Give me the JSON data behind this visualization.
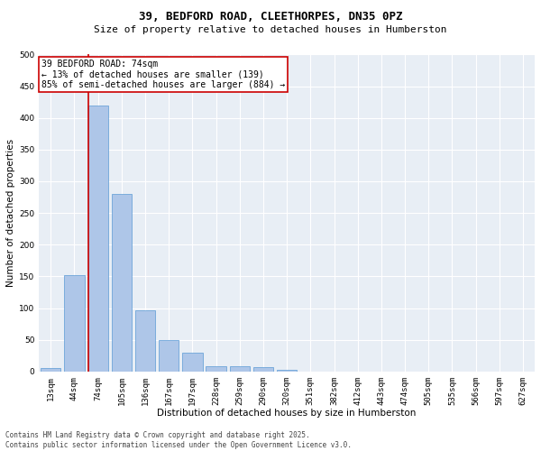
{
  "title_line1": "39, BEDFORD ROAD, CLEETHORPES, DN35 0PZ",
  "title_line2": "Size of property relative to detached houses in Humberston",
  "xlabel": "Distribution of detached houses by size in Humberston",
  "ylabel": "Number of detached properties",
  "bar_values": [
    5,
    152,
    420,
    280,
    96,
    50,
    29,
    8,
    8,
    7,
    3,
    0,
    0,
    0,
    0,
    0,
    0,
    0,
    0,
    0,
    0
  ],
  "bar_labels": [
    "13sqm",
    "44sqm",
    "74sqm",
    "105sqm",
    "136sqm",
    "167sqm",
    "197sqm",
    "228sqm",
    "259sqm",
    "290sqm",
    "320sqm",
    "351sqm",
    "382sqm",
    "412sqm",
    "443sqm",
    "474sqm",
    "505sqm",
    "535sqm",
    "566sqm",
    "597sqm",
    "627sqm"
  ],
  "bar_color": "#aec6e8",
  "bar_edge_color": "#5b9bd5",
  "vline_color": "#cc0000",
  "vline_x_index": 2,
  "annotation_text": "39 BEDFORD ROAD: 74sqm\n← 13% of detached houses are smaller (139)\n85% of semi-detached houses are larger (884) →",
  "annotation_box_color": "#cc0000",
  "ylim": [
    0,
    500
  ],
  "yticks": [
    0,
    50,
    100,
    150,
    200,
    250,
    300,
    350,
    400,
    450,
    500
  ],
  "bg_color": "#e8eef5",
  "footer_text": "Contains HM Land Registry data © Crown copyright and database right 2025.\nContains public sector information licensed under the Open Government Licence v3.0.",
  "title_fontsize": 9,
  "subtitle_fontsize": 8,
  "axis_label_fontsize": 7.5,
  "tick_fontsize": 6.5,
  "annotation_fontsize": 7,
  "footer_fontsize": 5.5,
  "ylabel_fontsize": 7.5
}
